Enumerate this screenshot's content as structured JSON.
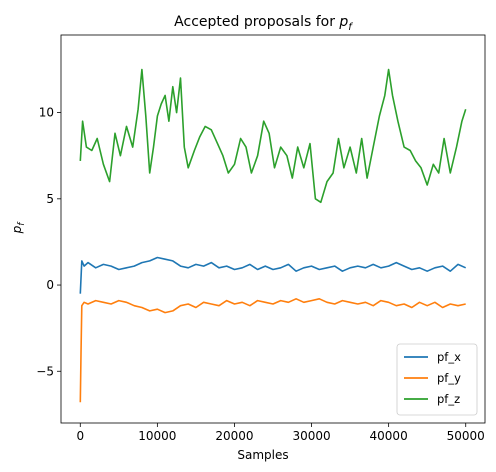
{
  "chart_data": {
    "type": "line",
    "title": "Accepted proposals for ",
    "title_math": "p",
    "title_math_sub": "f",
    "xlabel": "Samples",
    "ylabel": "p",
    "ylabel_sub": "f",
    "xlim": [
      -2500,
      52500
    ],
    "ylim": [
      -8,
      14.5
    ],
    "xticks": [
      0,
      10000,
      20000,
      30000,
      40000,
      50000
    ],
    "xtick_labels": [
      "0",
      "10000",
      "20000",
      "30000",
      "40000",
      "50000"
    ],
    "yticks": [
      -5,
      0,
      5,
      10
    ],
    "ytick_labels": [
      "−5",
      "0",
      "5",
      "10"
    ],
    "grid": false,
    "legend_position": "lower-right",
    "series": [
      {
        "name": "pf_x",
        "color": "#1f77b4",
        "x": [
          0,
          200,
          500,
          1000,
          2000,
          3000,
          4000,
          5000,
          6000,
          7000,
          8000,
          9000,
          10000,
          11000,
          12000,
          13000,
          14000,
          15000,
          16000,
          17000,
          18000,
          19000,
          20000,
          21000,
          22000,
          23000,
          24000,
          25000,
          26000,
          27000,
          28000,
          29000,
          30000,
          31000,
          32000,
          33000,
          34000,
          35000,
          36000,
          37000,
          38000,
          39000,
          40000,
          41000,
          42000,
          43000,
          44000,
          45000,
          46000,
          47000,
          48000,
          49000,
          50000
        ],
        "y": [
          -0.5,
          1.4,
          1.1,
          1.3,
          1.0,
          1.2,
          1.1,
          0.9,
          1.0,
          1.1,
          1.3,
          1.4,
          1.6,
          1.5,
          1.4,
          1.1,
          1.0,
          1.2,
          1.1,
          1.3,
          1.0,
          1.1,
          0.9,
          1.0,
          1.2,
          0.9,
          1.1,
          0.9,
          1.0,
          1.2,
          0.8,
          1.0,
          1.1,
          0.9,
          1.0,
          1.1,
          0.8,
          1.0,
          1.1,
          1.0,
          1.2,
          1.0,
          1.1,
          1.3,
          1.1,
          0.9,
          1.0,
          0.8,
          1.0,
          1.1,
          0.8,
          1.2,
          1.0
        ]
      },
      {
        "name": "pf_y",
        "color": "#ff7f0e",
        "x": [
          0,
          100,
          200,
          500,
          1000,
          2000,
          3000,
          4000,
          5000,
          6000,
          7000,
          8000,
          9000,
          10000,
          11000,
          12000,
          13000,
          14000,
          15000,
          16000,
          17000,
          18000,
          19000,
          20000,
          21000,
          22000,
          23000,
          24000,
          25000,
          26000,
          27000,
          28000,
          29000,
          30000,
          31000,
          32000,
          33000,
          34000,
          35000,
          36000,
          37000,
          38000,
          39000,
          40000,
          41000,
          42000,
          43000,
          44000,
          45000,
          46000,
          47000,
          48000,
          49000,
          50000
        ],
        "y": [
          -6.8,
          -4.0,
          -1.2,
          -1.0,
          -1.1,
          -0.9,
          -1.0,
          -1.1,
          -0.9,
          -1.0,
          -1.2,
          -1.3,
          -1.5,
          -1.4,
          -1.6,
          -1.5,
          -1.2,
          -1.1,
          -1.3,
          -1.0,
          -1.1,
          -1.2,
          -0.9,
          -1.1,
          -1.0,
          -1.2,
          -0.9,
          -1.0,
          -1.1,
          -0.9,
          -1.0,
          -0.8,
          -1.0,
          -0.9,
          -0.8,
          -1.0,
          -1.1,
          -0.9,
          -1.0,
          -1.1,
          -1.0,
          -1.2,
          -0.9,
          -1.0,
          -1.2,
          -1.1,
          -1.3,
          -1.0,
          -1.2,
          -1.0,
          -1.3,
          -1.1,
          -1.2,
          -1.1
        ]
      },
      {
        "name": "pf_z",
        "color": "#2ca02c",
        "x": [
          0,
          300,
          800,
          1500,
          2200,
          3000,
          3800,
          4500,
          5200,
          6000,
          6800,
          7500,
          8000,
          8500,
          9000,
          9500,
          10000,
          10500,
          11000,
          11500,
          12000,
          12500,
          13000,
          13500,
          14000,
          14800,
          15500,
          16200,
          17000,
          17800,
          18500,
          19200,
          20000,
          20800,
          21500,
          22200,
          23000,
          23800,
          24500,
          25200,
          26000,
          26800,
          27500,
          28200,
          29000,
          29800,
          30500,
          31200,
          32000,
          32800,
          33500,
          34200,
          35000,
          35800,
          36500,
          37200,
          38000,
          38800,
          39500,
          40000,
          40500,
          41200,
          42000,
          42800,
          43500,
          44200,
          45000,
          45800,
          46500,
          47200,
          48000,
          48800,
          49500,
          50000
        ],
        "y": [
          7.2,
          9.5,
          8.0,
          7.8,
          8.5,
          7.0,
          6.0,
          8.8,
          7.5,
          9.2,
          8.0,
          10.2,
          12.5,
          9.8,
          6.5,
          8.0,
          9.8,
          10.5,
          11.0,
          9.5,
          11.5,
          10.0,
          12.0,
          8.0,
          6.8,
          7.8,
          8.6,
          9.2,
          9.0,
          8.2,
          7.5,
          6.5,
          7.0,
          8.5,
          8.0,
          6.5,
          7.5,
          9.5,
          8.8,
          6.8,
          8.0,
          7.5,
          6.2,
          8.0,
          6.8,
          8.2,
          5.0,
          4.8,
          6.0,
          6.5,
          8.5,
          6.8,
          8.0,
          6.5,
          8.5,
          6.2,
          8.0,
          9.8,
          11.0,
          12.5,
          11.0,
          9.5,
          8.0,
          7.8,
          7.2,
          6.8,
          5.8,
          7.0,
          6.5,
          8.5,
          6.5,
          8.0,
          9.5,
          10.2
        ]
      }
    ]
  }
}
